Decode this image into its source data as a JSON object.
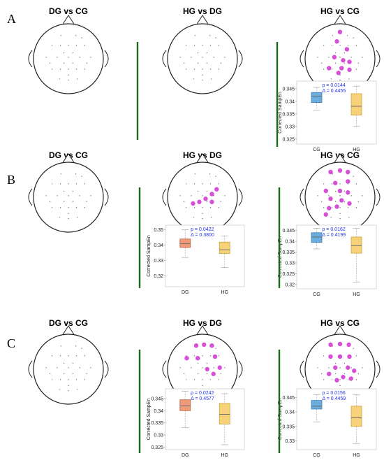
{
  "rows": [
    {
      "label": "A",
      "panels": [
        {
          "title": "DG vs CG",
          "significant_channels": 0,
          "boxplot": null
        },
        {
          "title": "HG vs DG",
          "significant_channels": 0,
          "boxplot": null
        },
        {
          "title": "HG vs CG",
          "significant_channels": 10,
          "boxplot": {
            "ylabel": "Corrected SampEn",
            "yticks": [
              "0.325",
              "0.33",
              "0.335",
              "0.34",
              "0.345"
            ],
            "ylim": [
              0.323,
              0.348
            ],
            "p_text": "p = 0.0144",
            "delta_text": "Δ = 0.4455",
            "groups": [
              {
                "label": "CG",
                "color": "#6aaee0",
                "stroke": "#3f7fb5",
                "min": 0.3365,
                "q1": 0.3395,
                "median": 0.342,
                "q3": 0.3435,
                "max": 0.3455
              },
              {
                "label": "HG",
                "color": "#f7d27a",
                "stroke": "#c9a640",
                "min": 0.33,
                "q1": 0.3345,
                "median": 0.338,
                "q3": 0.343,
                "max": 0.346
              }
            ]
          }
        }
      ]
    },
    {
      "label": "B",
      "panels": [
        {
          "title": "DG vs CG",
          "significant_channels": 0,
          "boxplot": null
        },
        {
          "title": "HG vs DG",
          "significant_channels": 6,
          "boxplot": {
            "ylabel": "Corrected SampEn",
            "yticks": [
              "0.32",
              "0.33",
              "0.34",
              "0.35"
            ],
            "ylim": [
              0.313,
              0.353
            ],
            "p_text": "p = 0.0422",
            "delta_text": "Δ = 0.3800",
            "groups": [
              {
                "label": "DG",
                "color": "#ef9a78",
                "stroke": "#c0694a",
                "min": 0.332,
                "q1": 0.3385,
                "median": 0.341,
                "q3": 0.344,
                "max": 0.35
              },
              {
                "label": "HG",
                "color": "#f7d27a",
                "stroke": "#c9a640",
                "min": 0.3255,
                "q1": 0.3345,
                "median": 0.337,
                "q3": 0.342,
                "max": 0.346
              }
            ]
          }
        },
        {
          "title": "HG vs CG",
          "significant_channels": 14,
          "boxplot": {
            "ylabel": "Corrected SampEn",
            "yticks": [
              "0.32",
              "0.325",
              "0.33",
              "0.335",
              "0.34",
              "0.345"
            ],
            "ylim": [
              0.318,
              0.3475
            ],
            "p_text": "p = 0.0162",
            "delta_text": "Δ = 0.4199",
            "groups": [
              {
                "label": "CG",
                "color": "#6aaee0",
                "stroke": "#3f7fb5",
                "min": 0.3365,
                "q1": 0.3395,
                "median": 0.342,
                "q3": 0.344,
                "max": 0.346
              },
              {
                "label": "HG",
                "color": "#f7d27a",
                "stroke": "#c9a640",
                "min": 0.321,
                "q1": 0.3345,
                "median": 0.338,
                "q3": 0.342,
                "max": 0.346
              }
            ]
          }
        }
      ]
    },
    {
      "label": "C",
      "panels": [
        {
          "title": "DG vs CG",
          "significant_channels": 0,
          "boxplot": null
        },
        {
          "title": "HG vs DG",
          "significant_channels": 9,
          "boxplot": {
            "ylabel": "Corrected SampEn",
            "yticks": [
              "0.325",
              "0.33",
              "0.335",
              "0.34",
              "0.345"
            ],
            "ylim": [
              0.324,
              0.349
            ],
            "p_text": "p = 0.0242",
            "delta_text": "Δ = 0.4577",
            "groups": [
              {
                "label": "DG",
                "color": "#ef9a78",
                "stroke": "#c0694a",
                "min": 0.333,
                "q1": 0.34,
                "median": 0.342,
                "q3": 0.3445,
                "max": 0.348
              },
              {
                "label": "HG",
                "color": "#f7d27a",
                "stroke": "#c9a640",
                "min": 0.326,
                "q1": 0.3345,
                "median": 0.3385,
                "q3": 0.343,
                "max": 0.347
              }
            ]
          }
        },
        {
          "title": "HG vs CG",
          "significant_channels": 13,
          "boxplot": {
            "ylabel": "Corrected SampEn",
            "yticks": [
              "0.33",
              "0.335",
              "0.34",
              "0.345"
            ],
            "ylim": [
              0.327,
              0.348
            ],
            "p_text": "p = 0.0156",
            "delta_text": "Δ = 0.4459",
            "groups": [
              {
                "label": "CG",
                "color": "#6aaee0",
                "stroke": "#3f7fb5",
                "min": 0.3365,
                "q1": 0.341,
                "median": 0.342,
                "q3": 0.344,
                "max": 0.346
              },
              {
                "label": "HG",
                "color": "#f7d27a",
                "stroke": "#c9a640",
                "min": 0.329,
                "q1": 0.335,
                "median": 0.338,
                "q3": 0.342,
                "max": 0.346
              }
            ]
          }
        }
      ]
    }
  ],
  "chart_data": {
    "type": "boxplot",
    "ylabel": "Corrected SampEn",
    "plots": [
      {
        "row": "A",
        "comparison": "HG vs CG",
        "p": 0.0144,
        "delta": 0.4455,
        "groups": [
          {
            "name": "CG",
            "min": 0.3365,
            "q1": 0.3395,
            "median": 0.342,
            "q3": 0.3435,
            "max": 0.3455
          },
          {
            "name": "HG",
            "min": 0.33,
            "q1": 0.3345,
            "median": 0.338,
            "q3": 0.343,
            "max": 0.346
          }
        ]
      },
      {
        "row": "B",
        "comparison": "HG vs DG",
        "p": 0.0422,
        "delta": 0.38,
        "groups": [
          {
            "name": "DG",
            "min": 0.332,
            "q1": 0.3385,
            "median": 0.341,
            "q3": 0.344,
            "max": 0.35
          },
          {
            "name": "HG",
            "min": 0.3255,
            "q1": 0.3345,
            "median": 0.337,
            "q3": 0.342,
            "max": 0.346
          }
        ]
      },
      {
        "row": "B",
        "comparison": "HG vs CG",
        "p": 0.0162,
        "delta": 0.4199,
        "groups": [
          {
            "name": "CG",
            "min": 0.3365,
            "q1": 0.3395,
            "median": 0.342,
            "q3": 0.344,
            "max": 0.346
          },
          {
            "name": "HG",
            "min": 0.321,
            "q1": 0.3345,
            "median": 0.338,
            "q3": 0.342,
            "max": 0.346
          }
        ]
      },
      {
        "row": "C",
        "comparison": "HG vs DG",
        "p": 0.0242,
        "delta": 0.4577,
        "groups": [
          {
            "name": "DG",
            "min": 0.333,
            "q1": 0.34,
            "median": 0.342,
            "q3": 0.3445,
            "max": 0.348
          },
          {
            "name": "HG",
            "min": 0.326,
            "q1": 0.3345,
            "median": 0.3385,
            "q3": 0.343,
            "max": 0.347
          }
        ]
      },
      {
        "row": "C",
        "comparison": "HG vs CG",
        "p": 0.0156,
        "delta": 0.4459,
        "groups": [
          {
            "name": "CG",
            "min": 0.3365,
            "q1": 0.341,
            "median": 0.342,
            "q3": 0.344,
            "max": 0.346
          },
          {
            "name": "HG",
            "min": 0.329,
            "q1": 0.335,
            "median": 0.338,
            "q3": 0.342,
            "max": 0.346
          }
        ]
      }
    ]
  }
}
